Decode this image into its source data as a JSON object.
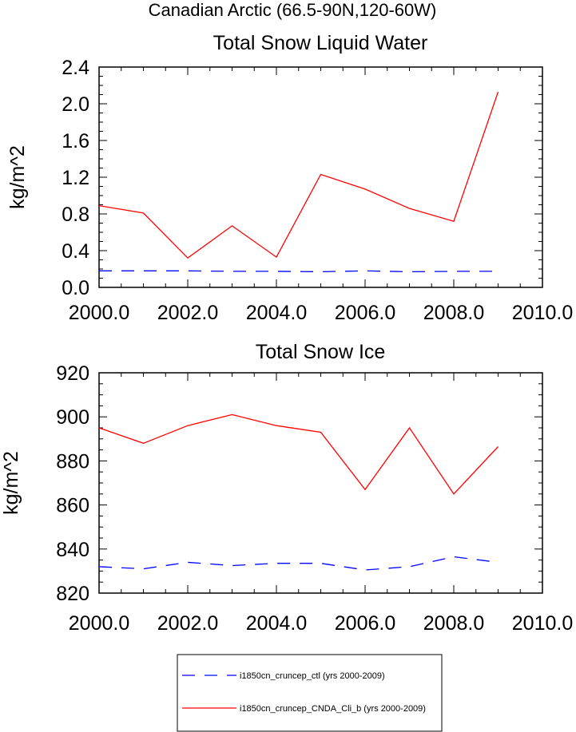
{
  "figure": {
    "suptitle": "Canadian Arctic (66.5-90N,120-60W)"
  },
  "chart_data": [
    {
      "type": "line",
      "title": "Total Snow Liquid Water",
      "xlabel": "",
      "ylabel": "kg/m^2",
      "xlim": [
        2000,
        2010
      ],
      "ylim": [
        0,
        2.4
      ],
      "xticks": [
        "2000.0",
        "2002.0",
        "2004.0",
        "2006.0",
        "2008.0",
        "2010.0"
      ],
      "yticks": [
        "0.0",
        "0.4",
        "0.8",
        "1.2",
        "1.6",
        "2.0",
        "2.4"
      ],
      "grid": false,
      "x": [
        2000,
        2001,
        2002,
        2003,
        2004,
        2005,
        2006,
        2007,
        2008,
        2009
      ],
      "series": [
        {
          "name": "i1850cn_cruncep_ctl (yrs 2000-2009)",
          "color": "#0000ff",
          "dash": "dashed",
          "values": [
            0.18,
            0.18,
            0.18,
            0.175,
            0.175,
            0.17,
            0.18,
            0.17,
            0.175,
            0.175
          ]
        },
        {
          "name": "i1850cn_cruncep_CNDA_Cli_b (yrs 2000-2009)",
          "color": "#ff0000",
          "dash": "solid",
          "values": [
            0.89,
            0.81,
            0.32,
            0.67,
            0.33,
            1.23,
            1.07,
            0.86,
            0.72,
            2.13
          ]
        }
      ]
    },
    {
      "type": "line",
      "title": "Total Snow Ice",
      "xlabel": "",
      "ylabel": "kg/m^2",
      "xlim": [
        2000,
        2010
      ],
      "ylim": [
        820,
        920
      ],
      "xticks": [
        "2000.0",
        "2002.0",
        "2004.0",
        "2006.0",
        "2008.0",
        "2010.0"
      ],
      "yticks": [
        "820",
        "840",
        "860",
        "880",
        "900",
        "920"
      ],
      "grid": false,
      "x": [
        2000,
        2001,
        2002,
        2003,
        2004,
        2005,
        2006,
        2007,
        2008,
        2009
      ],
      "series": [
        {
          "name": "i1850cn_cruncep_ctl (yrs 2000-2009)",
          "color": "#0000ff",
          "dash": "dashed",
          "values": [
            832,
            831,
            834,
            832.5,
            833.5,
            833.5,
            830.5,
            832,
            836.5,
            834
          ]
        },
        {
          "name": "i1850cn_cruncep_CNDA_Cli_b (yrs 2000-2009)",
          "color": "#ff0000",
          "dash": "solid",
          "values": [
            895,
            888,
            896,
            901,
            896,
            893,
            867,
            895,
            865,
            886.5
          ]
        }
      ]
    }
  ],
  "legend": {
    "placement": "bottom-center",
    "entries": [
      {
        "label": "i1850cn_cruncep_ctl (yrs 2000-2009)",
        "color": "#0000ff",
        "dash": "dashed"
      },
      {
        "label": "i1850cn_cruncep_CNDA_Cli_b (yrs 2000-2009)",
        "color": "#ff0000",
        "dash": "solid"
      }
    ]
  }
}
